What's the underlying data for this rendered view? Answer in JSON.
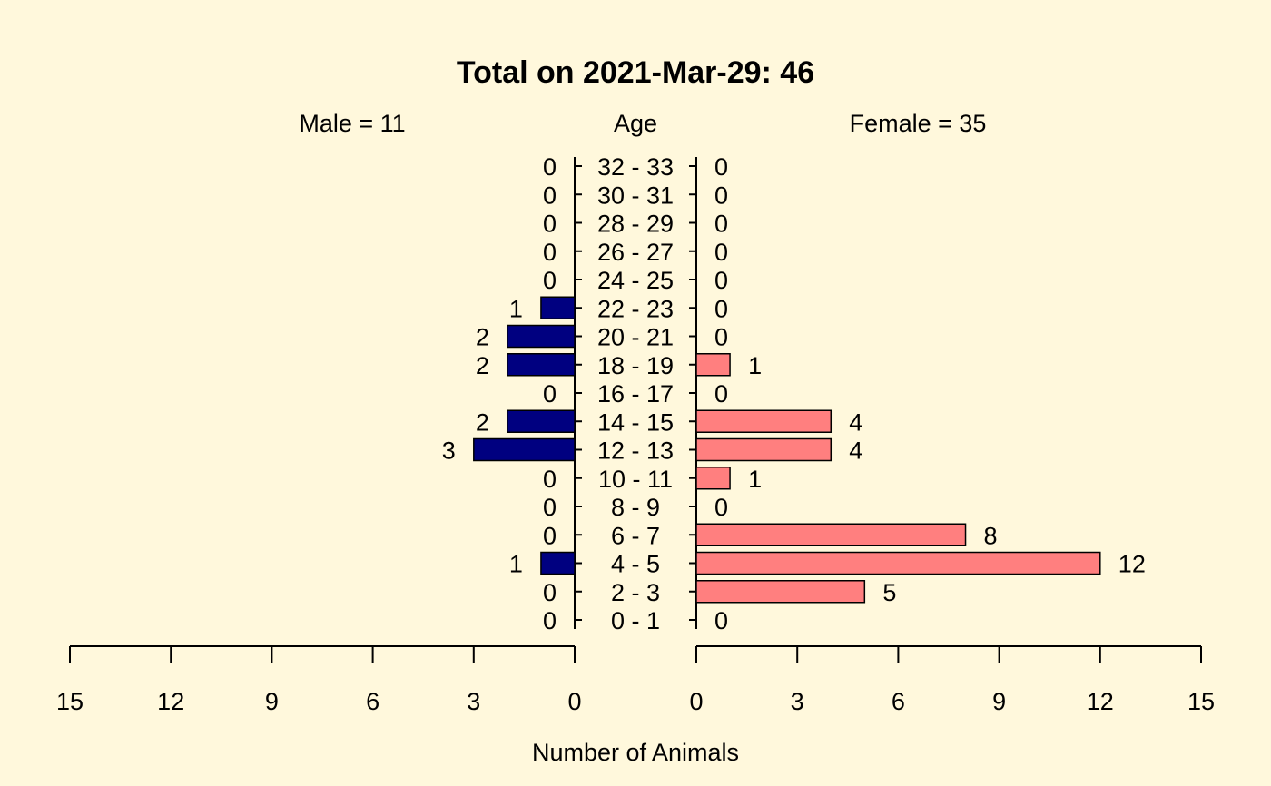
{
  "chart_data": {
    "type": "bar",
    "title": "Total on 2021-Mar-29: 46",
    "left_header": "Male = 11",
    "center_header": "Age",
    "right_header": "Female = 35",
    "xlabel": "Number of Animals",
    "categories": [
      "0 - 1",
      "2 - 3",
      "4 - 5",
      "6 - 7",
      "8 - 9",
      "10 - 11",
      "12 - 13",
      "14 - 15",
      "16 - 17",
      "18 - 19",
      "20 - 21",
      "22 - 23",
      "24 - 25",
      "26 - 27",
      "28 - 29",
      "30 - 31",
      "32 - 33"
    ],
    "series": [
      {
        "name": "Male",
        "color": "#000080",
        "values": [
          0,
          0,
          1,
          0,
          0,
          0,
          3,
          2,
          0,
          2,
          2,
          1,
          0,
          0,
          0,
          0,
          0
        ]
      },
      {
        "name": "Female",
        "color": "#FF7F7F",
        "values": [
          0,
          5,
          12,
          8,
          0,
          1,
          4,
          4,
          0,
          1,
          0,
          0,
          0,
          0,
          0,
          0,
          0
        ]
      }
    ],
    "xlim": [
      0,
      15
    ],
    "xticks": [
      0,
      3,
      6,
      9,
      12,
      15
    ],
    "grid": false,
    "legend": "none"
  }
}
